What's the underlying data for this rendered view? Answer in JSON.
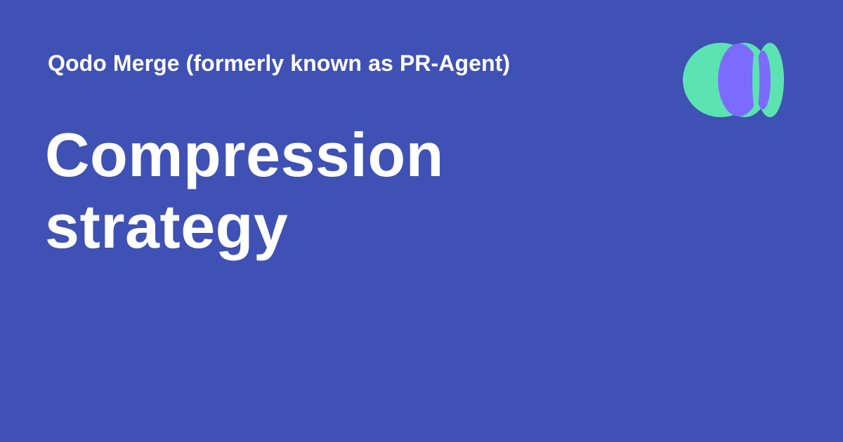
{
  "header": {
    "site_name": "Qodo Merge (formerly known as PR-Agent)",
    "logo_icon": "qodo-logo-icon"
  },
  "main": {
    "title": "Compression strategy"
  },
  "colors": {
    "background": "#3f51b5",
    "text": "#ffffff",
    "logo_green": "#5ce3b2",
    "logo_purple": "#7b6cff"
  }
}
